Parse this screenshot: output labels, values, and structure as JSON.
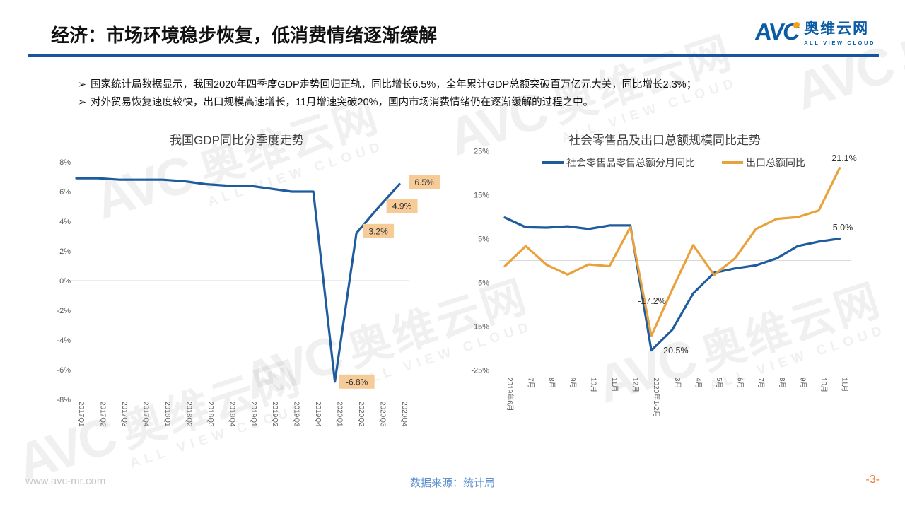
{
  "slide": {
    "title": "经济：市场环境稳步恢复，低消费情绪逐渐缓解",
    "bullet_marker": "➢",
    "bullets": [
      "国家统计局数据显示，我国2020年四季度GDP走势回归正轨，同比增长6.5%，全年累计GDP总额突破百万亿元大关，同比增长2.3%；",
      "对外贸易恢复速度较快，出口规模高速增长，11月增速突破20%，国内市场消费情绪仍在逐渐缓解的过程之中。"
    ]
  },
  "logo": {
    "avc": "AVC",
    "cn": "奥维云网",
    "en": "ALL VIEW CLOUD"
  },
  "watermark": {
    "avc": "AVC",
    "cn": "奥维云网",
    "en": "ALL VIEW CLOUD"
  },
  "footer": {
    "website": "www.avc-mr.com",
    "source": "数据来源：统计局",
    "page": "-3-"
  },
  "colors": {
    "accent_blue": "#15569E",
    "line_blue": "#1E5C9E",
    "line_orange": "#E9A13B",
    "label_box_bg": "#F6CB97",
    "grid_gray": "#D9D9D9",
    "tick_gray": "#595959",
    "source_blue": "#5B8FD0",
    "page_orange": "#ED7D31"
  },
  "chart_data": [
    {
      "type": "line",
      "title": "我国GDP同比分季度走势",
      "categories": [
        "2017Q1",
        "2017Q2",
        "2017Q3",
        "2017Q4",
        "2018Q1",
        "2018Q2",
        "2018Q3",
        "2018Q4",
        "2019Q1",
        "2019Q2",
        "2019Q3",
        "2019Q4",
        "2020Q1",
        "2020Q2",
        "2020Q3",
        "2020Q4"
      ],
      "series": [
        {
          "name": "GDP同比",
          "color": "#1E5C9E",
          "values": [
            6.9,
            6.9,
            6.8,
            6.8,
            6.8,
            6.7,
            6.5,
            6.4,
            6.4,
            6.2,
            6.0,
            6.0,
            -6.8,
            3.2,
            4.9,
            6.5
          ]
        }
      ],
      "ylim": [
        -8,
        8
      ],
      "ytick_step": 2,
      "ytick_suffix": "%",
      "grid": "zero-line-only",
      "legend_position": "none",
      "point_labels": [
        {
          "series": 0,
          "index": 12,
          "text": "-6.8%"
        },
        {
          "series": 0,
          "index": 13,
          "text": "3.2%"
        },
        {
          "series": 0,
          "index": 14,
          "text": "4.9%"
        },
        {
          "series": 0,
          "index": 15,
          "text": "6.5%"
        }
      ]
    },
    {
      "type": "line",
      "title": "社会零售品及出口总额规模同比走势",
      "categories": [
        "2019年6月",
        "7月",
        "8月",
        "9月",
        "10月",
        "11月",
        "12月",
        "2020年1-2月",
        "3月",
        "4月",
        "5月",
        "6月",
        "7月",
        "8月",
        "9月",
        "10月",
        "11月"
      ],
      "series": [
        {
          "name": "社会零售品零售总额分月同比",
          "color": "#1E5C9E",
          "values": [
            9.8,
            7.6,
            7.5,
            7.8,
            7.2,
            8.0,
            8.0,
            -20.5,
            -15.8,
            -7.5,
            -2.8,
            -1.8,
            -1.1,
            0.5,
            3.3,
            4.3,
            5.0
          ]
        },
        {
          "name": "出口总额同比",
          "color": "#E9A13B",
          "values": [
            -1.3,
            3.3,
            -1.0,
            -3.2,
            -0.9,
            -1.3,
            7.6,
            -17.2,
            -6.6,
            3.5,
            -3.3,
            0.5,
            7.2,
            9.5,
            9.9,
            11.4,
            21.1
          ]
        }
      ],
      "ylim": [
        -25,
        25
      ],
      "ytick_step": 10,
      "ytick_suffix": "%",
      "grid": "zero-line-only",
      "legend_position": "top",
      "point_labels": [
        {
          "series": 1,
          "index": 16,
          "text": "21.1%"
        },
        {
          "series": 0,
          "index": 16,
          "text": "5.0%"
        },
        {
          "series": 1,
          "index": 7,
          "text": "-17.2%"
        },
        {
          "series": 0,
          "index": 7,
          "text": "-20.5%"
        }
      ]
    }
  ]
}
